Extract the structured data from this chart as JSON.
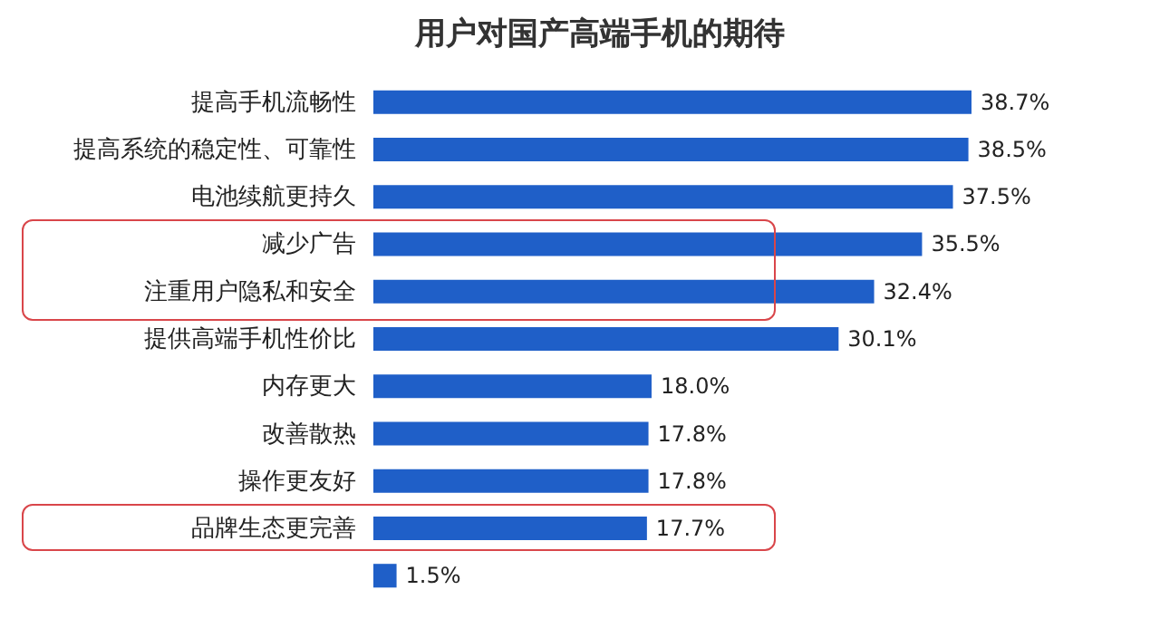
{
  "chart_data": {
    "type": "bar",
    "orientation": "horizontal",
    "title": "用户对国产高端手机的期待",
    "categories": [
      "提高手机流畅性",
      "提高系统的稳定性、可靠性",
      "电池续航更持久",
      "减少广告",
      "注重用户隐私和安全",
      "提供高端手机性价比",
      "内存更大",
      "改善散热",
      "操作更友好",
      "品牌生态更完善",
      null
    ],
    "values": [
      38.7,
      38.5,
      37.5,
      35.5,
      32.4,
      30.1,
      18.0,
      17.8,
      17.8,
      17.7,
      1.5
    ],
    "value_labels": [
      "38.7%",
      "38.5%",
      "37.5%",
      "35.5%",
      "32.4%",
      "30.1%",
      "18.0%",
      "17.8%",
      "17.8%",
      "17.7%",
      "1.5%"
    ],
    "color": "#1f5fc8"
  }
}
